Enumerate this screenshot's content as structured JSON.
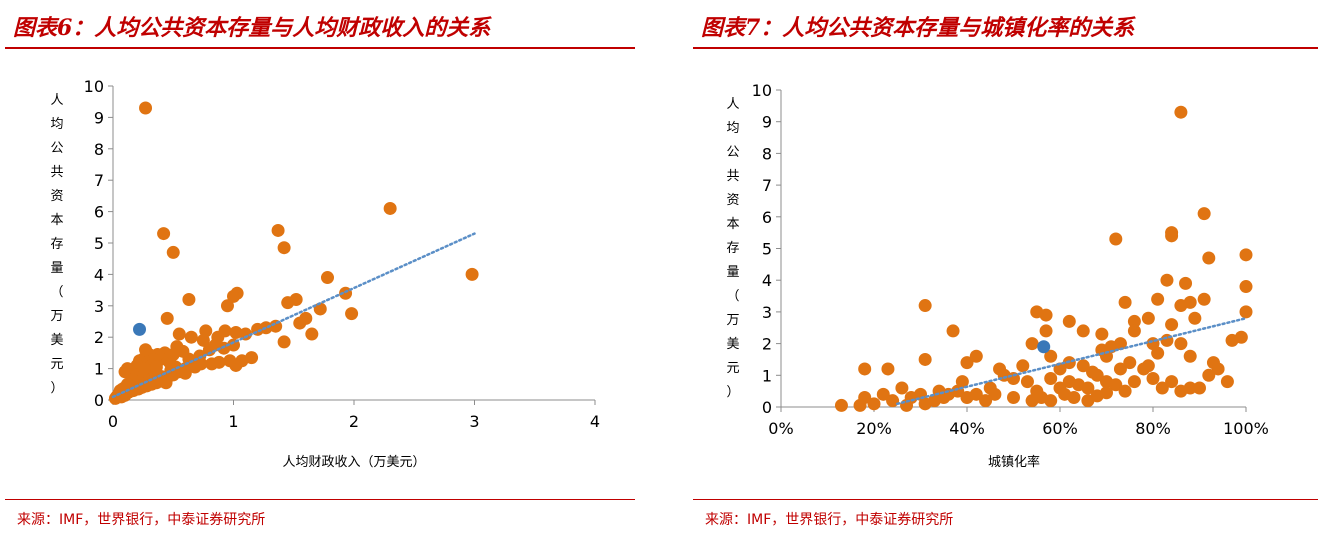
{
  "panels": [
    {
      "title": "图表6：人均公共资本存量与人均财政收入的关系",
      "source": "来源：IMF，世界银行，中泰证券研究所"
    },
    {
      "title": "图表7：人均公共资本存量与城镇化率的关系",
      "source": "来源：IMF，世界银行，中泰证券研究所"
    }
  ],
  "colors": {
    "accent": "#c00000",
    "points": "#e07412",
    "highlight": "#3a78b8",
    "trend": "#5b8fc7"
  },
  "chart_data": [
    {
      "type": "scatter",
      "title": "图表6：人均公共资本存量与人均财政收入的关系",
      "xlabel": "人均财政收入（万美元）",
      "ylabel": "人均公共资本存量（万美元）",
      "xlim": [
        0,
        4
      ],
      "ylim": [
        0,
        10
      ],
      "xticks": [
        "0",
        "1",
        "2",
        "3",
        "4"
      ],
      "yticks": [
        "0",
        "1",
        "2",
        "3",
        "4",
        "5",
        "6",
        "7",
        "8",
        "9",
        "10"
      ],
      "grid": false,
      "legend": "none",
      "trendline": {
        "x": [
          0,
          3.0
        ],
        "y": [
          0.1,
          5.3
        ]
      },
      "highlight": [
        [
          0.22,
          2.25
        ]
      ],
      "points": [
        [
          0.27,
          9.3
        ],
        [
          2.3,
          6.1
        ],
        [
          0.42,
          5.3
        ],
        [
          0.5,
          4.7
        ],
        [
          1.37,
          5.4
        ],
        [
          1.42,
          4.85
        ],
        [
          2.98,
          4.0
        ],
        [
          1.78,
          3.9
        ],
        [
          1.52,
          3.2
        ],
        [
          1.45,
          3.1
        ],
        [
          1.03,
          3.4
        ],
        [
          1.0,
          3.3
        ],
        [
          0.95,
          3.0
        ],
        [
          0.63,
          3.2
        ],
        [
          1.93,
          3.4
        ],
        [
          1.98,
          2.75
        ],
        [
          1.72,
          2.9
        ],
        [
          1.6,
          2.6
        ],
        [
          1.55,
          2.45
        ],
        [
          1.35,
          2.35
        ],
        [
          1.27,
          2.3
        ],
        [
          1.2,
          2.25
        ],
        [
          1.1,
          2.1
        ],
        [
          1.02,
          2.15
        ],
        [
          0.93,
          2.2
        ],
        [
          0.87,
          2.0
        ],
        [
          0.77,
          2.2
        ],
        [
          0.75,
          1.9
        ],
        [
          0.65,
          2.0
        ],
        [
          0.55,
          2.1
        ],
        [
          0.45,
          2.6
        ],
        [
          1.65,
          2.1
        ],
        [
          1.42,
          1.85
        ],
        [
          1.15,
          1.35
        ],
        [
          1.07,
          1.25
        ],
        [
          1.02,
          1.1
        ],
        [
          0.97,
          1.25
        ],
        [
          0.88,
          1.2
        ],
        [
          0.82,
          1.15
        ],
        [
          0.73,
          1.15
        ],
        [
          0.63,
          1.3
        ],
        [
          0.58,
          1.55
        ],
        [
          0.53,
          1.7
        ],
        [
          0.5,
          1.45
        ],
        [
          0.47,
          1.2
        ],
        [
          0.43,
          1.5
        ],
        [
          0.4,
          1.3
        ],
        [
          0.37,
          1.45
        ],
        [
          0.33,
          1.3
        ],
        [
          0.3,
          1.45
        ],
        [
          0.27,
          1.6
        ],
        [
          0.25,
          1.3
        ],
        [
          0.22,
          1.25
        ],
        [
          0.2,
          1.1
        ],
        [
          0.18,
          1.0
        ],
        [
          0.15,
          0.9
        ],
        [
          0.12,
          1.0
        ],
        [
          0.1,
          0.9
        ],
        [
          0.55,
          0.9
        ],
        [
          0.6,
          0.85
        ],
        [
          0.5,
          0.8
        ],
        [
          0.45,
          0.7
        ],
        [
          0.4,
          0.75
        ],
        [
          0.35,
          0.9
        ],
        [
          0.3,
          0.8
        ],
        [
          0.28,
          0.6
        ],
        [
          0.25,
          0.75
        ],
        [
          0.22,
          0.55
        ],
        [
          0.2,
          0.8
        ],
        [
          0.18,
          0.5
        ],
        [
          0.16,
          0.65
        ],
        [
          0.14,
          0.45
        ],
        [
          0.12,
          0.5
        ],
        [
          0.1,
          0.4
        ],
        [
          0.08,
          0.35
        ],
        [
          0.06,
          0.3
        ],
        [
          0.05,
          0.2
        ],
        [
          0.04,
          0.15
        ],
        [
          0.03,
          0.1
        ],
        [
          0.02,
          0.05
        ],
        [
          0.07,
          0.1
        ],
        [
          0.1,
          0.15
        ],
        [
          0.13,
          0.25
        ],
        [
          0.17,
          0.3
        ],
        [
          0.21,
          0.35
        ],
        [
          0.24,
          0.4
        ],
        [
          0.28,
          0.45
        ],
        [
          0.32,
          0.5
        ],
        [
          0.36,
          0.55
        ],
        [
          0.4,
          0.6
        ],
        [
          0.44,
          0.55
        ],
        [
          0.48,
          0.95
        ],
        [
          0.52,
          1.05
        ],
        [
          0.6,
          1.0
        ],
        [
          0.68,
          1.05
        ],
        [
          0.72,
          1.4
        ],
        [
          0.8,
          1.6
        ],
        [
          0.85,
          1.75
        ],
        [
          0.92,
          1.65
        ],
        [
          1.0,
          1.75
        ],
        [
          0.32,
          1.1
        ],
        [
          0.36,
          1.05
        ],
        [
          0.26,
          1.0
        ],
        [
          0.15,
          0.3
        ],
        [
          0.09,
          0.25
        ]
      ]
    },
    {
      "type": "scatter",
      "title": "图表7：人均公共资本存量与城镇化率的关系",
      "xlabel": "城镇化率",
      "ylabel": "人均公共资本存量（万美元）",
      "xlim": [
        0,
        100
      ],
      "ylim": [
        0,
        10
      ],
      "xticks": [
        "0%",
        "20%",
        "40%",
        "60%",
        "80%",
        "100%"
      ],
      "yticks": [
        "0",
        "1",
        "2",
        "3",
        "4",
        "5",
        "6",
        "7",
        "8",
        "9",
        "10"
      ],
      "grid": false,
      "legend": "none",
      "trendline": {
        "x": [
          25,
          100
        ],
        "y": [
          0.1,
          2.8
        ]
      },
      "highlight": [
        [
          56.5,
          1.9
        ]
      ],
      "points": [
        [
          86,
          9.3
        ],
        [
          91,
          6.1
        ],
        [
          72,
          5.3
        ],
        [
          84,
          5.5
        ],
        [
          84,
          5.4
        ],
        [
          100,
          4.8
        ],
        [
          92,
          4.7
        ],
        [
          83,
          4.0
        ],
        [
          87,
          3.9
        ],
        [
          100,
          3.8
        ],
        [
          81,
          3.4
        ],
        [
          91,
          3.4
        ],
        [
          88,
          3.3
        ],
        [
          86,
          3.2
        ],
        [
          74,
          3.3
        ],
        [
          31,
          3.2
        ],
        [
          55,
          3.0
        ],
        [
          57,
          2.9
        ],
        [
          62,
          2.7
        ],
        [
          100,
          3.0
        ],
        [
          89,
          2.8
        ],
        [
          79,
          2.8
        ],
        [
          84,
          2.6
        ],
        [
          76,
          2.7
        ],
        [
          69,
          2.3
        ],
        [
          65,
          2.4
        ],
        [
          54,
          2.0
        ],
        [
          57,
          2.4
        ],
        [
          37,
          2.4
        ],
        [
          40,
          1.4
        ],
        [
          42,
          1.6
        ],
        [
          31,
          1.5
        ],
        [
          18,
          1.2
        ],
        [
          23,
          1.2
        ],
        [
          70,
          1.6
        ],
        [
          71,
          1.9
        ],
        [
          69,
          1.8
        ],
        [
          73,
          2.0
        ],
        [
          76,
          2.4
        ],
        [
          80,
          2.0
        ],
        [
          81,
          1.7
        ],
        [
          83,
          2.1
        ],
        [
          86,
          2.0
        ],
        [
          88,
          1.6
        ],
        [
          93,
          1.4
        ],
        [
          97,
          2.1
        ],
        [
          99,
          2.2
        ],
        [
          47,
          1.2
        ],
        [
          50,
          0.9
        ],
        [
          53,
          0.8
        ],
        [
          55,
          0.5
        ],
        [
          58,
          0.9
        ],
        [
          60,
          0.6
        ],
        [
          62,
          0.8
        ],
        [
          64,
          0.7
        ],
        [
          66,
          0.6
        ],
        [
          68,
          1.0
        ],
        [
          70,
          0.8
        ],
        [
          72,
          0.7
        ],
        [
          74,
          0.5
        ],
        [
          76,
          0.8
        ],
        [
          78,
          1.2
        ],
        [
          80,
          0.9
        ],
        [
          82,
          0.6
        ],
        [
          84,
          0.8
        ],
        [
          86,
          0.5
        ],
        [
          88,
          0.6
        ],
        [
          90,
          0.6
        ],
        [
          92,
          1.0
        ],
        [
          94,
          1.2
        ],
        [
          96,
          0.8
        ],
        [
          60,
          1.2
        ],
        [
          62,
          1.4
        ],
        [
          58,
          1.6
        ],
        [
          52,
          1.3
        ],
        [
          48,
          1.0
        ],
        [
          45,
          0.6
        ],
        [
          42,
          0.4
        ],
        [
          40,
          0.3
        ],
        [
          38,
          0.5
        ],
        [
          35,
          0.3
        ],
        [
          33,
          0.2
        ],
        [
          30,
          0.4
        ],
        [
          28,
          0.3
        ],
        [
          26,
          0.6
        ],
        [
          24,
          0.2
        ],
        [
          22,
          0.4
        ],
        [
          20,
          0.1
        ],
        [
          18,
          0.3
        ],
        [
          17,
          0.05
        ],
        [
          13,
          0.05
        ],
        [
          27,
          0.05
        ],
        [
          44,
          0.2
        ],
        [
          46,
          0.4
        ],
        [
          50,
          0.3
        ],
        [
          54,
          0.2
        ],
        [
          56,
          0.3
        ],
        [
          58,
          0.2
        ],
        [
          61,
          0.4
        ],
        [
          63,
          0.3
        ],
        [
          66,
          0.2
        ],
        [
          68,
          0.35
        ],
        [
          70,
          0.45
        ],
        [
          73,
          1.2
        ],
        [
          75,
          1.4
        ],
        [
          79,
          1.3
        ],
        [
          67,
          1.1
        ],
        [
          65,
          1.3
        ],
        [
          36,
          0.4
        ],
        [
          39,
          0.8
        ],
        [
          34,
          0.5
        ],
        [
          31,
          0.1
        ]
      ]
    }
  ]
}
